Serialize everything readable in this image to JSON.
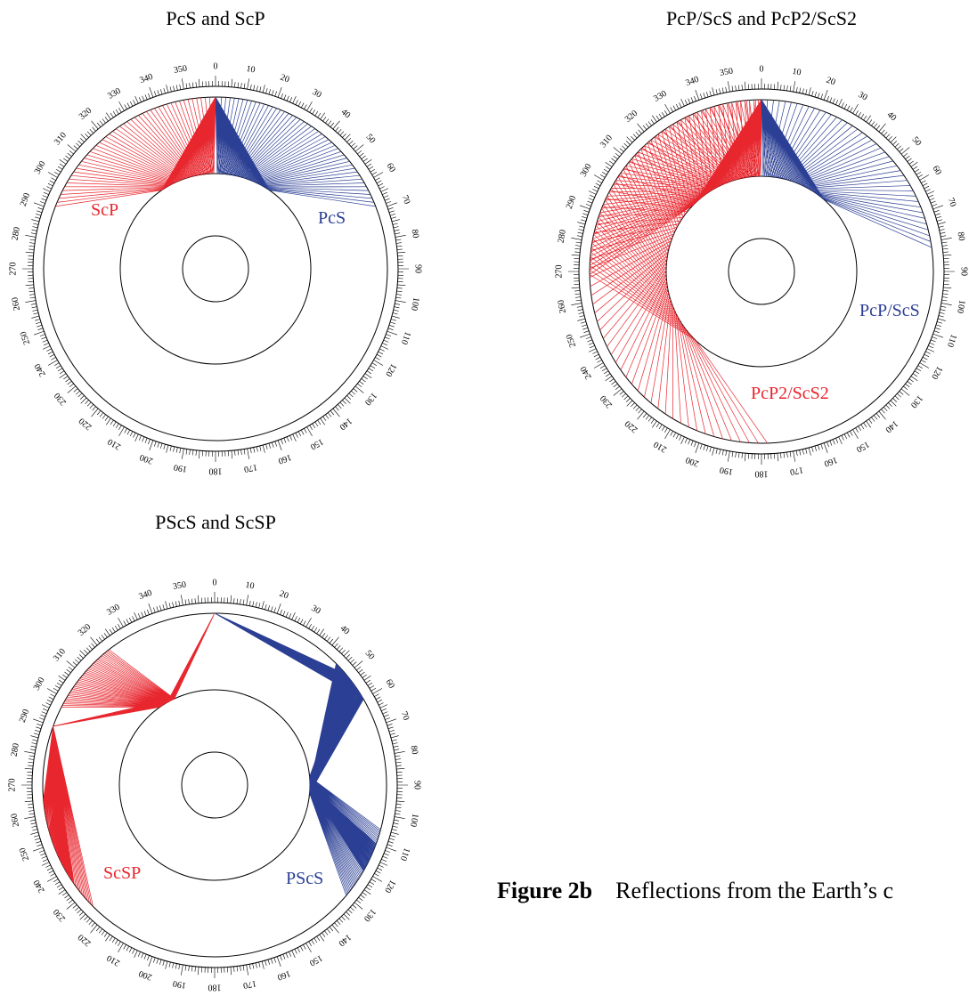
{
  "panels": [
    {
      "id": "pcs-scp",
      "title": "PcS and ScP",
      "labels": [
        {
          "text": "ScP",
          "color": "#e8262e"
        },
        {
          "text": "PcS",
          "color": "#2b3f94"
        }
      ]
    },
    {
      "id": "pcp-scs",
      "title": "PcP/ScS and PcP2/ScS2",
      "labels": [
        {
          "text": "PcP/ScS",
          "color": "#2b3f94"
        },
        {
          "text": "PcP2/ScS2",
          "color": "#e8262e"
        }
      ]
    },
    {
      "id": "pscs-scsp",
      "title": "PScS and ScSP",
      "labels": [
        {
          "text": "ScSP",
          "color": "#e8262e"
        },
        {
          "text": "PScS",
          "color": "#2b3f94"
        }
      ]
    }
  ],
  "degree_labels": [
    "0",
    "10",
    "20",
    "30",
    "40",
    "50",
    "60",
    "70",
    "80",
    "90",
    "100",
    "110",
    "120",
    "130",
    "140",
    "150",
    "160",
    "170",
    "180",
    "190",
    "200",
    "210",
    "220",
    "230",
    "240",
    "250",
    "260",
    "270",
    "280",
    "290",
    "300",
    "310",
    "320",
    "330",
    "340",
    "350"
  ],
  "caption": {
    "bold": "Figure 2b",
    "text": "Reflections from the Earth’s c"
  },
  "colors": {
    "red": "#e8262e",
    "blue": "#2b3f94"
  }
}
